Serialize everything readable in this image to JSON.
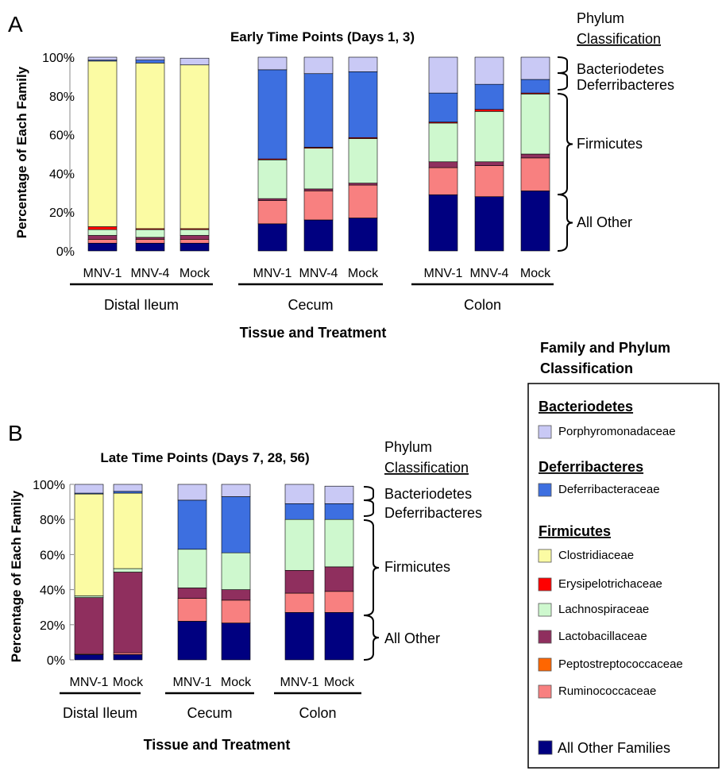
{
  "legend": {
    "title_line1": "Family and Phylum",
    "title_line2": "Classification",
    "groups": [
      {
        "phylum": "Bacteriodetes",
        "items": [
          {
            "name": "Porphyromonadaceae",
            "color": "#c9c9f5"
          }
        ]
      },
      {
        "phylum": "Deferribacteres",
        "items": [
          {
            "name": "Deferribacteraceae",
            "color": "#3d6fe0"
          }
        ]
      },
      {
        "phylum": "Firmicutes",
        "items": [
          {
            "name": "Clostridiaceae",
            "color": "#fbfba3"
          },
          {
            "name": "Erysipelotrichaceae",
            "color": "#ff0000"
          },
          {
            "name": "Lachnospiraceae",
            "color": "#cef8ce"
          },
          {
            "name": "Lactobacillaceae",
            "color": "#8f2f5e"
          },
          {
            "name": "Peptostreptococcaceae",
            "color": "#ff6600"
          },
          {
            "name": "Ruminococcaceae",
            "color": "#f88080"
          }
        ]
      },
      {
        "phylum": "",
        "items": [
          {
            "name": "All Other Families",
            "color": "#000080"
          }
        ]
      }
    ]
  },
  "chart_data": [
    {
      "type": "bar",
      "stacked": true,
      "panel_label": "A",
      "title": "Early Time Points (Days 1, 3)",
      "ylabel": "Percentage of Each Family",
      "xlabel": "Tissue and Treatment",
      "ylim": [
        0,
        100
      ],
      "yticks": [
        "0%",
        "20%",
        "40%",
        "60%",
        "80%",
        "100%"
      ],
      "phylum_header_line1": "Phylum",
      "phylum_header_line2": "Classification",
      "phylum_brackets": [
        "Bacteriodetes",
        "Deferribacteres",
        "Firmicutes",
        "All Other"
      ],
      "groups": [
        {
          "name": "Distal Ileum",
          "bars": [
            "MNV-1",
            "MNV-4",
            "Mock"
          ]
        },
        {
          "name": "Cecum",
          "bars": [
            "MNV-1",
            "MNV-4",
            "Mock"
          ]
        },
        {
          "name": "Colon",
          "bars": [
            "MNV-1",
            "MNV-4",
            "Mock"
          ]
        }
      ],
      "series_order": [
        "All Other Families",
        "Ruminococcaceae",
        "Lactobacillaceae",
        "Peptostreptococcaceae",
        "Lachnospiraceae",
        "Erysipelotrichaceae",
        "Clostridiaceae",
        "Deferribacteraceae",
        "Porphyromonadaceae"
      ],
      "series": [
        {
          "name": "All Other Families",
          "values": [
            4,
            4,
            4,
            14,
            16,
            17,
            29,
            28,
            31
          ]
        },
        {
          "name": "Ruminococcaceae",
          "values": [
            2,
            2,
            2,
            12,
            15,
            17,
            14,
            16,
            17
          ]
        },
        {
          "name": "Lactobacillaceae",
          "values": [
            2,
            1,
            2,
            1,
            1,
            1,
            3,
            2,
            2
          ]
        },
        {
          "name": "Peptostreptococcaceae",
          "values": [
            0,
            0,
            0,
            0,
            0,
            0,
            0,
            0,
            0
          ]
        },
        {
          "name": "Lachnospiraceae",
          "values": [
            3,
            4,
            3,
            20,
            21,
            23,
            20,
            26,
            31
          ]
        },
        {
          "name": "Erysipelotrichaceae",
          "values": [
            1.5,
            0.5,
            0.5,
            0.5,
            0.5,
            0.5,
            0.5,
            1,
            0.5
          ]
        },
        {
          "name": "Clostridiaceae",
          "values": [
            85.5,
            85.5,
            84.5,
            0,
            0,
            0,
            0,
            0,
            0
          ]
        },
        {
          "name": "Deferribacteraceae",
          "values": [
            0.5,
            1.5,
            0,
            46,
            38,
            34,
            15,
            13,
            7
          ]
        },
        {
          "name": "Porphyromonadaceae",
          "values": [
            1.5,
            1.5,
            3.5,
            6.5,
            8.5,
            7.5,
            18.5,
            14,
            11.5
          ]
        }
      ]
    },
    {
      "type": "bar",
      "stacked": true,
      "panel_label": "B",
      "title": "Late Time Points (Days 7, 28, 56)",
      "ylabel": "Percentage of Each Family",
      "xlabel": "Tissue and Treatment",
      "ylim": [
        0,
        100
      ],
      "yticks": [
        "0%",
        "20%",
        "40%",
        "60%",
        "80%",
        "100%"
      ],
      "phylum_header_line1": "Phylum",
      "phylum_header_line2": "Classification",
      "phylum_brackets": [
        "Bacteriodetes",
        "Deferribacteres",
        "Firmicutes",
        "All Other"
      ],
      "groups": [
        {
          "name": "Distal Ileum",
          "bars": [
            "MNV-1",
            "Mock"
          ]
        },
        {
          "name": "Cecum",
          "bars": [
            "MNV-1",
            "Mock"
          ]
        },
        {
          "name": "Colon",
          "bars": [
            "MNV-1",
            "Mock"
          ]
        }
      ],
      "series_order": [
        "All Other Families",
        "Ruminococcaceae",
        "Lactobacillaceae",
        "Peptostreptococcaceae",
        "Lachnospiraceae",
        "Erysipelotrichaceae",
        "Clostridiaceae",
        "Deferribacteraceae",
        "Porphyromonadaceae"
      ],
      "series": [
        {
          "name": "All Other Families",
          "values": [
            3,
            3,
            22,
            21,
            27,
            27
          ]
        },
        {
          "name": "Ruminococcaceae",
          "values": [
            0.5,
            1,
            13,
            13,
            11,
            12
          ]
        },
        {
          "name": "Lactobacillaceae",
          "values": [
            32,
            46,
            6,
            6,
            13,
            14
          ]
        },
        {
          "name": "Peptostreptococcaceae",
          "values": [
            0,
            0,
            0,
            0,
            0,
            0
          ]
        },
        {
          "name": "Lachnospiraceae",
          "values": [
            1,
            2,
            22,
            21,
            29,
            27
          ]
        },
        {
          "name": "Erysipelotrichaceae",
          "values": [
            0,
            0,
            0,
            0,
            0,
            0
          ]
        },
        {
          "name": "Clostridiaceae",
          "values": [
            58,
            43,
            0,
            0,
            0,
            0
          ]
        },
        {
          "name": "Deferribacteraceae",
          "values": [
            0.5,
            1,
            28,
            32,
            9,
            9
          ]
        },
        {
          "name": "Porphyromonadaceae",
          "values": [
            5,
            4,
            9,
            7,
            11,
            10
          ]
        }
      ]
    }
  ]
}
